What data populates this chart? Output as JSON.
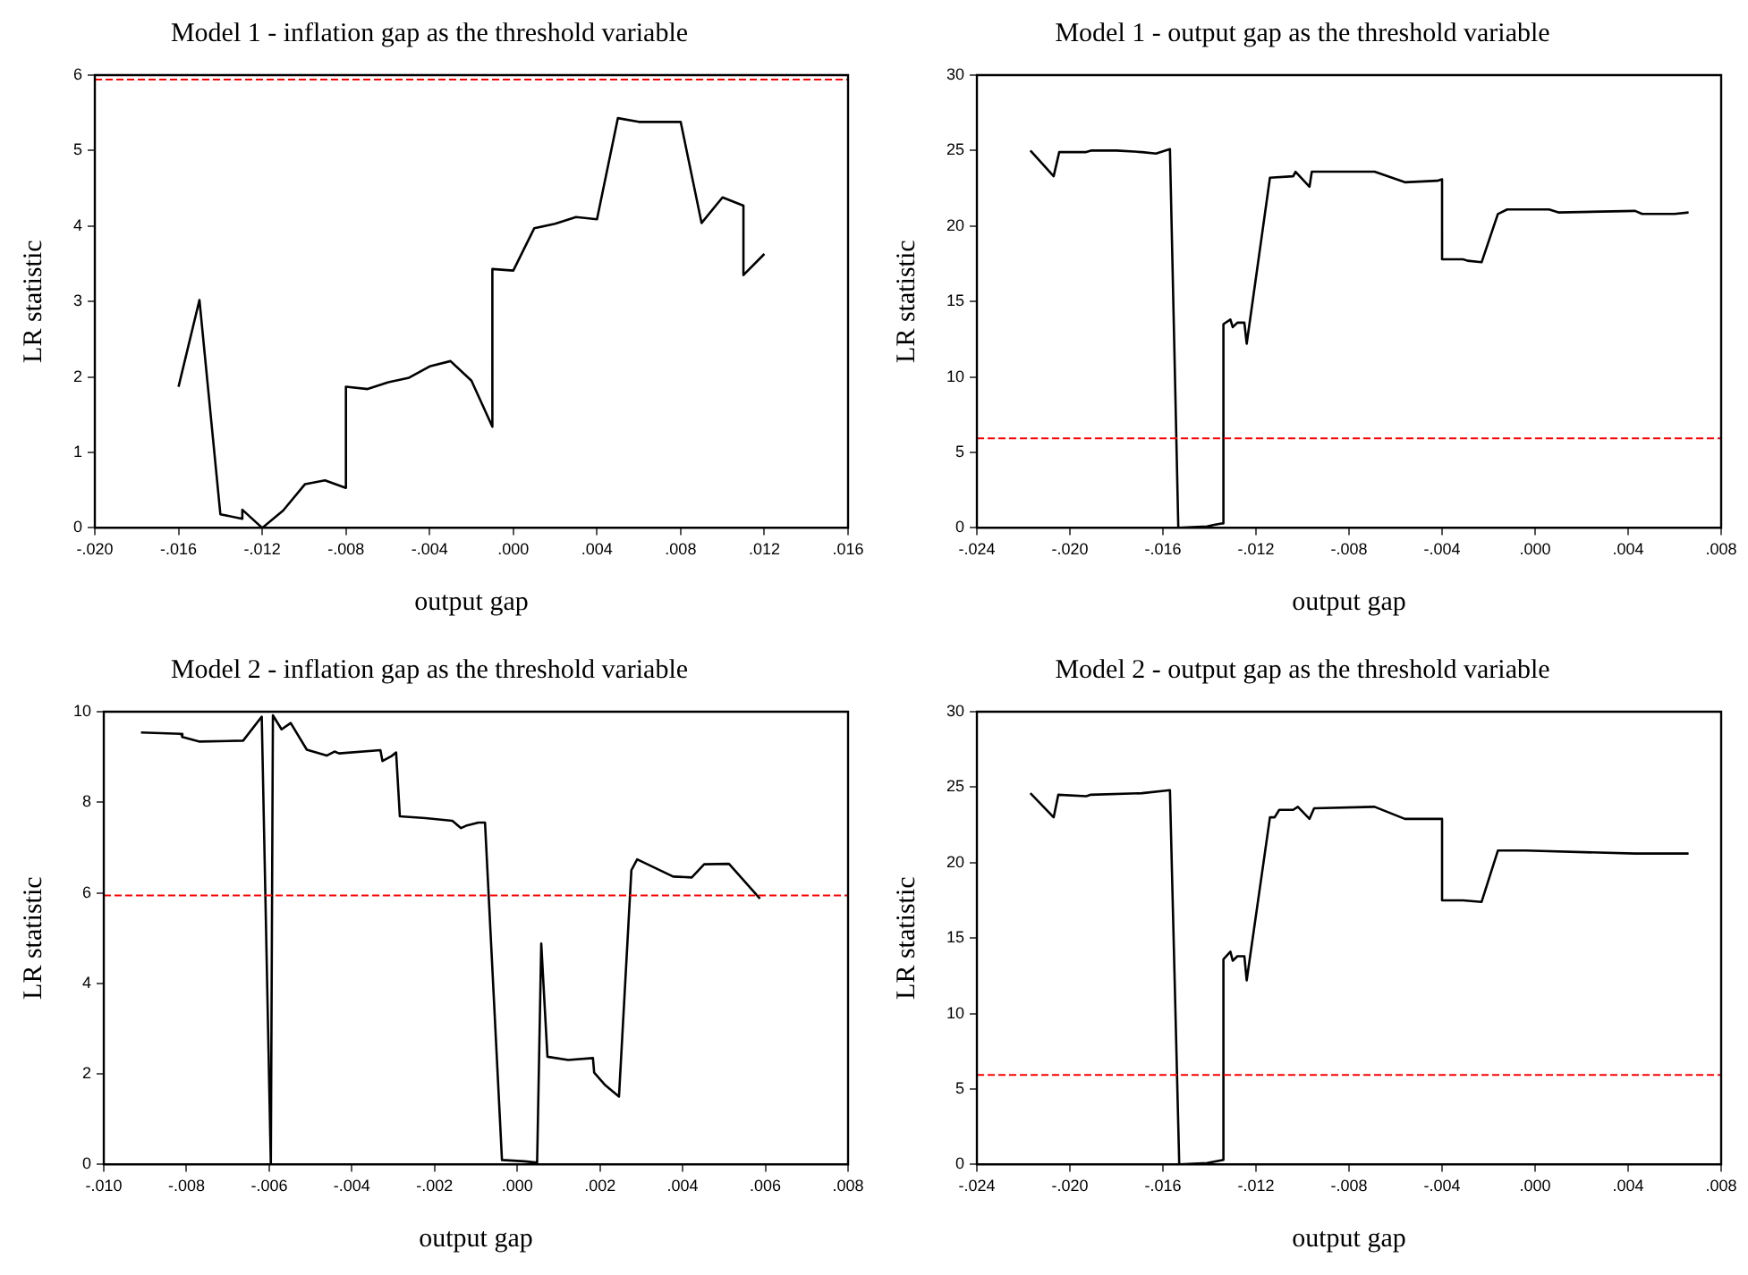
{
  "chart_data": [
    {
      "type": "line",
      "title": "Model 1 - inflation gap as the threshold variable",
      "xlabel": "output gap",
      "ylabel": "LR statistic",
      "xlim": [
        -0.02,
        0.016
      ],
      "xticks": [
        {
          "value": -0.02,
          "label": "-.020"
        },
        {
          "value": -0.016,
          "label": "-.016"
        },
        {
          "value": -0.012,
          "label": "-.012"
        },
        {
          "value": -0.008,
          "label": "-.008"
        },
        {
          "value": -0.004,
          "label": "-.004"
        },
        {
          "value": 0,
          "label": ".000"
        },
        {
          "value": 0.004,
          "label": ".004"
        },
        {
          "value": 0.008,
          "label": ".008"
        },
        {
          "value": 0.012,
          "label": ".012"
        },
        {
          "value": 0.016,
          "label": ".016"
        }
      ],
      "ylim": [
        0,
        6
      ],
      "yticks": [
        0,
        1,
        2,
        3,
        4,
        5,
        6
      ],
      "grid": false,
      "legend": false,
      "series": [
        {
          "color": "#000000",
          "x": [
            -0.016,
            -0.015,
            -0.014,
            -0.01295,
            -0.01295,
            -0.012,
            -0.011,
            -0.00995,
            -0.009,
            -0.008,
            -0.008,
            -0.00696,
            -0.00597,
            -0.00498,
            -0.004,
            -0.003,
            -0.002,
            -0.001,
            -0.001,
            0.0,
            0.001,
            0.002,
            0.003,
            0.004,
            0.005,
            0.006,
            0.008,
            0.009,
            0.01,
            0.011,
            0.011,
            0.012
          ],
          "values": [
            1.87,
            3.02,
            0.18,
            0.12,
            0.24,
            0,
            0.23,
            0.58,
            0.63,
            0.53,
            1.87,
            1.84,
            1.93,
            1.99,
            2.14,
            2.21,
            1.95,
            1.34,
            3.43,
            3.41,
            3.97,
            4.03,
            4.12,
            4.09,
            5.43,
            5.38,
            5.38,
            4.04,
            4.38,
            4.27,
            3.35,
            3.63
          ]
        }
      ],
      "ref_lines": [
        {
          "axis": "y",
          "value": 5.94,
          "color": "#ff0000",
          "line_style": "dashed"
        }
      ]
    },
    {
      "type": "line",
      "title": "Model 1 - output gap as the threshold variable",
      "xlabel": "output gap",
      "ylabel": "LR statistic",
      "xlim": [
        -0.024,
        0.008
      ],
      "xticks": [
        {
          "value": -0.024,
          "label": "-.024"
        },
        {
          "value": -0.02,
          "label": "-.020"
        },
        {
          "value": -0.016,
          "label": "-.016"
        },
        {
          "value": -0.012,
          "label": "-.012"
        },
        {
          "value": -0.008,
          "label": "-.008"
        },
        {
          "value": -0.004,
          "label": "-.004"
        },
        {
          "value": 0,
          "label": ".000"
        },
        {
          "value": 0.004,
          "label": ".004"
        },
        {
          "value": 0.008,
          "label": ".008"
        }
      ],
      "ylim": [
        0,
        30
      ],
      "yticks": [
        0,
        5,
        10,
        15,
        20,
        25,
        30
      ],
      "grid": false,
      "legend": false,
      "series": [
        {
          "color": "#000000",
          "x": [
            -0.0217,
            -0.0207,
            -0.02046,
            -0.0193,
            -0.0191,
            -0.018,
            -0.0169,
            -0.0163,
            -0.0157,
            -0.01534,
            -0.0141,
            -0.0138,
            -0.01343,
            -0.0134,
            -0.0131,
            -0.013,
            -0.0128,
            -0.0125,
            -0.0124,
            -0.0114,
            -0.0104,
            -0.0103,
            -0.0097,
            -0.0096,
            -0.0069,
            -0.0056,
            -0.0042,
            -0.004,
            -0.004,
            -0.0031,
            -0.0029,
            -0.0023,
            -0.0016,
            -0.0012,
            0.0006,
            0.001,
            0.0043,
            0.0046,
            0.006,
            0.0066
          ],
          "values": [
            25.0,
            23.3,
            24.9,
            24.9,
            25.0,
            25.0,
            24.9,
            24.8,
            25.1,
            0,
            0.1,
            0.2,
            0.3,
            13.5,
            13.8,
            13.3,
            13.6,
            13.6,
            12.2,
            23.2,
            23.3,
            23.6,
            22.6,
            23.6,
            23.6,
            22.9,
            23.0,
            23.1,
            17.8,
            17.8,
            17.7,
            17.6,
            20.8,
            21.1,
            21.1,
            20.9,
            21.0,
            20.8,
            20.8,
            20.9
          ]
        }
      ],
      "ref_lines": [
        {
          "axis": "y",
          "value": 5.94,
          "color": "#ff0000",
          "line_style": "dashed"
        }
      ]
    },
    {
      "type": "line",
      "title": "Model 2 - inflation gap as the threshold variable",
      "xlabel": "output gap",
      "ylabel": "LR statistic",
      "xlim": [
        -0.01,
        0.008
      ],
      "xticks": [
        {
          "value": -0.01,
          "label": "-.010"
        },
        {
          "value": -0.008,
          "label": "-.008"
        },
        {
          "value": -0.006,
          "label": "-.006"
        },
        {
          "value": -0.004,
          "label": "-.004"
        },
        {
          "value": -0.002,
          "label": "-.002"
        },
        {
          "value": 0,
          "label": ".000"
        },
        {
          "value": 0.002,
          "label": ".002"
        },
        {
          "value": 0.004,
          "label": ".004"
        },
        {
          "value": 0.006,
          "label": ".006"
        },
        {
          "value": 0.008,
          "label": ".008"
        }
      ],
      "ylim": [
        0,
        10
      ],
      "yticks": [
        0,
        2,
        4,
        6,
        8,
        10
      ],
      "grid": false,
      "legend": false,
      "series": [
        {
          "color": "#000000",
          "x": [
            -0.0091,
            -0.00813,
            -0.0081,
            -0.00768,
            -0.00663,
            -0.00618,
            -0.00596,
            -0.00591,
            -0.0057,
            -0.00548,
            -0.00509,
            -0.00461,
            -0.00442,
            -0.00431,
            -0.00331,
            -0.00326,
            -0.00304,
            -0.00293,
            -0.00284,
            -0.00222,
            -0.00157,
            -0.00136,
            -0.00124,
            -0.00094,
            -0.00078,
            -0.00037,
            0.00018,
            0.00048,
            0.00058,
            0.00073,
            0.00123,
            0.00183,
            0.00186,
            0.00213,
            0.00246,
            0.00276,
            0.0029,
            0.00377,
            0.00422,
            0.00452,
            0.00512,
            0.00587
          ],
          "values": [
            9.54,
            9.51,
            9.44,
            9.34,
            9.36,
            9.89,
            0,
            9.92,
            9.61,
            9.75,
            9.16,
            9.03,
            9.12,
            9.08,
            9.15,
            8.91,
            9.02,
            9.1,
            7.69,
            7.65,
            7.59,
            7.43,
            7.48,
            7.55,
            7.55,
            0.1,
            0.07,
            0.04,
            4.88,
            2.38,
            2.31,
            2.35,
            2.03,
            1.75,
            1.5,
            6.5,
            6.74,
            6.36,
            6.34,
            6.63,
            6.64,
            5.87
          ]
        }
      ],
      "ref_lines": [
        {
          "axis": "y",
          "value": 5.94,
          "color": "#ff0000",
          "line_style": "dashed"
        }
      ]
    },
    {
      "type": "line",
      "title": "Model 2 - output gap as the threshold variable",
      "xlabel": "output gap",
      "ylabel": "LR statistic",
      "xlim": [
        -0.024,
        0.008
      ],
      "xticks": [
        {
          "value": -0.024,
          "label": "-.024"
        },
        {
          "value": -0.02,
          "label": "-.020"
        },
        {
          "value": -0.016,
          "label": "-.016"
        },
        {
          "value": -0.012,
          "label": "-.012"
        },
        {
          "value": -0.008,
          "label": "-.008"
        },
        {
          "value": -0.004,
          "label": "-.004"
        },
        {
          "value": 0,
          "label": ".000"
        },
        {
          "value": 0.004,
          "label": ".004"
        },
        {
          "value": 0.008,
          "label": ".008"
        }
      ],
      "ylim": [
        0,
        30
      ],
      "yticks": [
        0,
        5,
        10,
        15,
        20,
        25,
        30
      ],
      "grid": false,
      "legend": false,
      "series": [
        {
          "color": "#000000",
          "x": [
            -0.0217,
            -0.0207,
            -0.0205,
            -0.0193,
            -0.0191,
            -0.0169,
            -0.0157,
            -0.0153,
            -0.0141,
            -0.0134,
            -0.0134,
            -0.0131,
            -0.013,
            -0.0128,
            -0.0125,
            -0.0124,
            -0.0114,
            -0.0112,
            -0.011,
            -0.0104,
            -0.0102,
            -0.0097,
            -0.0095,
            -0.0069,
            -0.0056,
            -0.004,
            -0.004,
            -0.0031,
            -0.0023,
            -0.0016,
            -0.0004,
            0.0043,
            0.0046,
            0.0066
          ],
          "values": [
            24.6,
            23.0,
            24.5,
            24.4,
            24.5,
            24.6,
            24.8,
            0,
            0.1,
            0.3,
            13.6,
            14.1,
            13.5,
            13.8,
            13.8,
            12.2,
            23.0,
            23.0,
            23.5,
            23.5,
            23.7,
            22.9,
            23.6,
            23.7,
            22.9,
            22.9,
            17.5,
            17.5,
            17.4,
            20.8,
            20.8,
            20.6,
            20.6,
            20.6
          ]
        }
      ],
      "ref_lines": [
        {
          "axis": "y",
          "value": 5.94,
          "color": "#ff0000",
          "line_style": "dashed"
        }
      ]
    }
  ]
}
